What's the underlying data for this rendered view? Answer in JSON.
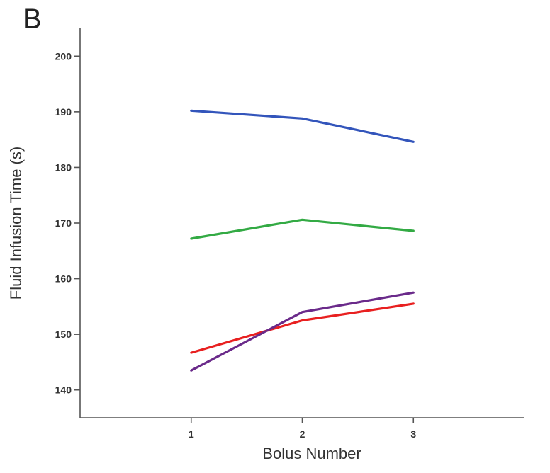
{
  "panel_label": "B",
  "chart_data": {
    "type": "line",
    "xlabel": "Bolus Number",
    "ylabel": "Fluid Infusion Time (s)",
    "x": [
      1,
      2,
      3
    ],
    "x_tick_labels": [
      "1",
      "2",
      "3"
    ],
    "xlim": [
      0,
      4
    ],
    "ylim": [
      135,
      205
    ],
    "y_ticks": [
      140,
      150,
      160,
      170,
      180,
      190,
      200
    ],
    "y_tick_labels": [
      "140",
      "150",
      "160",
      "170",
      "180",
      "190",
      "200"
    ],
    "grid": false,
    "series": [
      {
        "color": "#3355bb",
        "values": [
          190.2,
          188.8,
          184.6
        ]
      },
      {
        "color": "#33aa44",
        "values": [
          167.2,
          170.6,
          168.6
        ]
      },
      {
        "color": "#e82020",
        "values": [
          146.7,
          152.5,
          155.5
        ]
      },
      {
        "color": "#6a2a8a",
        "values": [
          143.5,
          154.0,
          157.5
        ]
      }
    ]
  }
}
